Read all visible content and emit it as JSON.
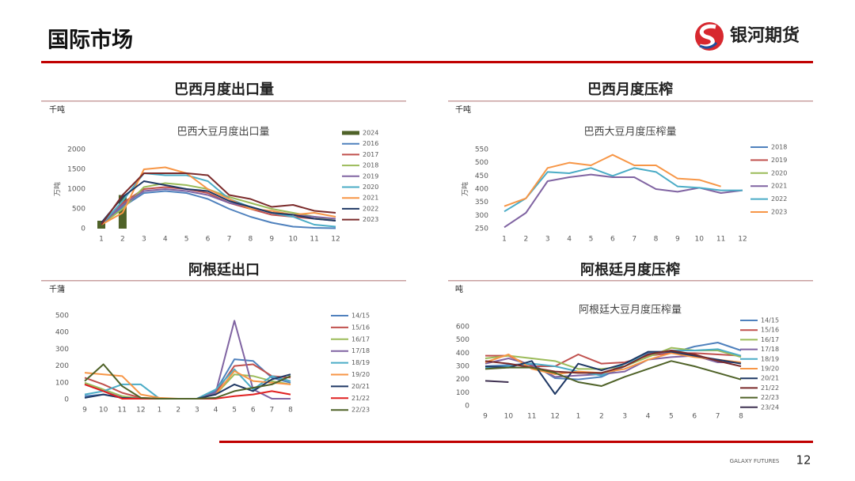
{
  "header": {
    "title": "国际市场",
    "brand": "银河期货"
  },
  "footer": {
    "brand": "GALAXY FUTURES",
    "page": "12"
  },
  "chart_data": [
    {
      "type": "line",
      "heading": "巴西月度出口量",
      "unit": "千吨",
      "title": "巴西大豆月度出口量",
      "y_label": "万吨",
      "categories": [
        "1",
        "2",
        "3",
        "4",
        "5",
        "6",
        "7",
        "8",
        "9",
        "10",
        "11",
        "12"
      ],
      "ylim": [
        0,
        2000
      ],
      "yticks": [
        0,
        500,
        1000,
        1500,
        2000
      ],
      "series": [
        {
          "name": "2024",
          "type": "bar",
          "color": "#4f6228",
          "values": [
            200,
            850,
            null,
            null,
            null,
            null,
            null,
            null,
            null,
            null,
            null,
            null
          ]
        },
        {
          "name": "2016",
          "color": "#4f81bd",
          "values": [
            100,
            550,
            900,
            950,
            900,
            750,
            500,
            300,
            150,
            50,
            20,
            10
          ]
        },
        {
          "name": "2017",
          "color": "#c0504d",
          "values": [
            150,
            650,
            1000,
            1050,
            1000,
            900,
            650,
            500,
            350,
            300,
            250,
            200
          ]
        },
        {
          "name": "2018",
          "color": "#9bbb59",
          "values": [
            100,
            500,
            1050,
            1150,
            1100,
            1000,
            800,
            650,
            500,
            400,
            300,
            200
          ]
        },
        {
          "name": "2019",
          "color": "#8064a2",
          "values": [
            100,
            600,
            950,
            1000,
            950,
            850,
            650,
            550,
            400,
            350,
            300,
            250
          ]
        },
        {
          "name": "2020",
          "color": "#4bacc6",
          "values": [
            100,
            700,
            1400,
            1350,
            1350,
            1200,
            750,
            550,
            400,
            300,
            100,
            50
          ]
        },
        {
          "name": "2021",
          "color": "#f79646",
          "values": [
            100,
            400,
            1500,
            1550,
            1400,
            1000,
            750,
            500,
            450,
            350,
            400,
            300
          ]
        },
        {
          "name": "2022",
          "color": "#1f3864",
          "values": [
            150,
            800,
            1200,
            1100,
            1000,
            950,
            700,
            550,
            400,
            350,
            250,
            200
          ]
        },
        {
          "name": "2023",
          "color": "#7b2b2b",
          "values": [
            100,
            850,
            1400,
            1400,
            1400,
            1350,
            850,
            750,
            550,
            600,
            450,
            400
          ]
        }
      ]
    },
    {
      "type": "line",
      "heading": "巴西月度压榨",
      "unit": "千吨",
      "title": "巴西大豆月度压榨量",
      "y_label": "万吨",
      "categories": [
        "1",
        "2",
        "3",
        "4",
        "5",
        "6",
        "7",
        "8",
        "9",
        "10",
        "11",
        "12"
      ],
      "ylim": [
        250,
        550
      ],
      "yticks": [
        250,
        300,
        350,
        400,
        450,
        500,
        550
      ],
      "series": [
        {
          "name": "2018",
          "color": "#4f81bd",
          "values": [
            null,
            null,
            null,
            null,
            null,
            null,
            null,
            null,
            null,
            null,
            null,
            null
          ]
        },
        {
          "name": "2019",
          "color": "#c0504d",
          "values": [
            null,
            null,
            null,
            null,
            null,
            null,
            null,
            null,
            null,
            null,
            null,
            null
          ]
        },
        {
          "name": "2020",
          "color": "#9bbb59",
          "values": [
            null,
            null,
            null,
            null,
            null,
            null,
            null,
            null,
            null,
            null,
            null,
            null
          ]
        },
        {
          "name": "2021",
          "color": "#8064a2",
          "values": [
            255,
            310,
            430,
            445,
            455,
            445,
            445,
            400,
            390,
            405,
            385,
            395
          ]
        },
        {
          "name": "2022",
          "color": "#4bacc6",
          "values": [
            315,
            365,
            465,
            460,
            480,
            450,
            480,
            465,
            410,
            405,
            395,
            395
          ]
        },
        {
          "name": "2023",
          "color": "#f79646",
          "values": [
            335,
            365,
            480,
            500,
            490,
            530,
            490,
            490,
            440,
            435,
            410,
            null
          ]
        }
      ]
    },
    {
      "type": "line",
      "heading": "阿根廷出口",
      "unit": "千蒲",
      "categories": [
        "9",
        "10",
        "11",
        "12",
        "1",
        "2",
        "3",
        "4",
        "5",
        "6",
        "7",
        "8"
      ],
      "ylim": [
        0,
        500
      ],
      "yticks": [
        0,
        100,
        200,
        300,
        400,
        500
      ],
      "series": [
        {
          "name": "14/15",
          "color": "#4f81bd",
          "values": [
            20,
            30,
            10,
            5,
            5,
            5,
            5,
            50,
            240,
            230,
            130,
            100
          ]
        },
        {
          "name": "15/16",
          "color": "#c0504d",
          "values": [
            130,
            90,
            40,
            10,
            5,
            5,
            5,
            40,
            200,
            210,
            140,
            130
          ]
        },
        {
          "name": "16/17",
          "color": "#9bbb59",
          "values": [
            100,
            60,
            20,
            5,
            5,
            5,
            5,
            30,
            150,
            140,
            110,
            90
          ]
        },
        {
          "name": "17/18",
          "color": "#8064a2",
          "values": [
            90,
            50,
            10,
            5,
            5,
            5,
            5,
            40,
            470,
            60,
            5,
            5
          ]
        },
        {
          "name": "18/19",
          "color": "#4bacc6",
          "values": [
            30,
            50,
            90,
            90,
            5,
            5,
            5,
            60,
            180,
            60,
            140,
            110
          ]
        },
        {
          "name": "19/20",
          "color": "#f79646",
          "values": [
            160,
            150,
            140,
            30,
            10,
            5,
            5,
            30,
            170,
            110,
            100,
            90
          ]
        },
        {
          "name": "20/21",
          "color": "#1f3864",
          "values": [
            10,
            30,
            10,
            5,
            5,
            5,
            5,
            30,
            90,
            50,
            120,
            150
          ]
        },
        {
          "name": "21/22",
          "color": "#e02020",
          "values": [
            90,
            50,
            5,
            5,
            5,
            5,
            5,
            5,
            20,
            30,
            50,
            30
          ]
        },
        {
          "name": "22/23",
          "color": "#4f6228",
          "values": [
            110,
            210,
            80,
            10,
            5,
            5,
            5,
            10,
            50,
            70,
            90,
            140
          ]
        }
      ]
    },
    {
      "type": "line",
      "heading": "阿根廷月度压榨",
      "unit": "吨",
      "title": "阿根廷大豆月度压榨量",
      "categories": [
        "9",
        "10",
        "11",
        "12",
        "1",
        "2",
        "3",
        "4",
        "5",
        "6",
        "7",
        "8"
      ],
      "ylim": [
        0,
        600
      ],
      "yticks": [
        0,
        100,
        200,
        300,
        400,
        500,
        600
      ],
      "series": [
        {
          "name": "14/15",
          "color": "#4f81bd",
          "values": [
            300,
            310,
            320,
            210,
            200,
            220,
            300,
            400,
            400,
            450,
            480,
            420
          ]
        },
        {
          "name": "15/16",
          "color": "#c0504d",
          "values": [
            380,
            380,
            300,
            300,
            390,
            320,
            330,
            380,
            400,
            400,
            390,
            380
          ]
        },
        {
          "name": "16/17",
          "color": "#9bbb59",
          "values": [
            360,
            380,
            360,
            340,
            280,
            280,
            300,
            370,
            440,
            420,
            420,
            370
          ]
        },
        {
          "name": "17/18",
          "color": "#8064a2",
          "values": [
            320,
            360,
            310,
            220,
            230,
            240,
            260,
            350,
            370,
            380,
            330,
            330
          ]
        },
        {
          "name": "18/19",
          "color": "#4bacc6",
          "values": [
            290,
            300,
            320,
            300,
            260,
            230,
            320,
            390,
            420,
            420,
            430,
            380
          ]
        },
        {
          "name": "19/20",
          "color": "#f79646",
          "values": [
            330,
            390,
            280,
            240,
            260,
            250,
            280,
            350,
            400,
            370,
            350,
            330
          ]
        },
        {
          "name": "20/21",
          "color": "#1f3864",
          "values": [
            300,
            290,
            340,
            90,
            320,
            270,
            320,
            410,
            410,
            380,
            350,
            320
          ]
        },
        {
          "name": "21/22",
          "color": "#7b2b2b",
          "values": [
            340,
            320,
            290,
            260,
            250,
            250,
            300,
            390,
            420,
            390,
            340,
            300
          ]
        },
        {
          "name": "22/23",
          "color": "#4f6228",
          "values": [
            280,
            290,
            290,
            250,
            180,
            150,
            220,
            280,
            340,
            300,
            250,
            200
          ]
        },
        {
          "name": "23/24",
          "color": "#3f3151",
          "values": [
            190,
            180,
            null,
            null,
            null,
            null,
            null,
            null,
            null,
            null,
            null,
            null
          ]
        }
      ]
    }
  ]
}
